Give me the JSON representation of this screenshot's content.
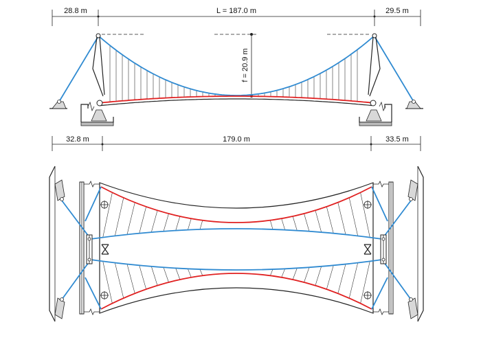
{
  "colors": {
    "cable": "#2f8ad1",
    "deck": "#e02020",
    "line": "#222222",
    "background": "#ffffff"
  },
  "elevation": {
    "dimensions": {
      "left_backspan": "28.8 m",
      "main_span": "L = 187.0 m",
      "right_backspan": "29.5 m",
      "sag": "f = 20.9 m"
    }
  },
  "deck_dimensions": {
    "left": "32.8 m",
    "middle": "179.0 m",
    "right": "33.5 m"
  }
}
